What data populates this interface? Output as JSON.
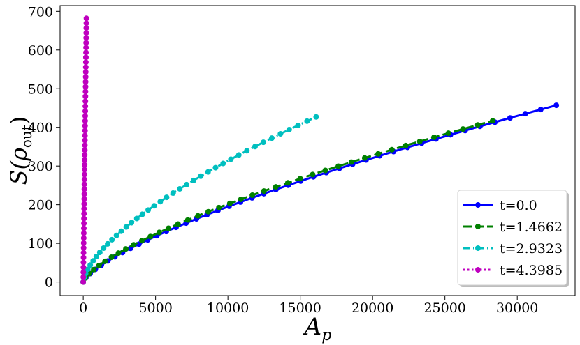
{
  "chart_data": {
    "type": "line",
    "xlabel": "A_p",
    "ylabel": "S(ρ_out)",
    "xlim": [
      -1600,
      34000
    ],
    "ylim": [
      -35,
      715
    ],
    "xticks": [
      0,
      5000,
      10000,
      15000,
      20000,
      25000,
      30000
    ],
    "yticks": [
      0,
      100,
      200,
      300,
      400,
      500,
      600,
      700
    ],
    "grid": false,
    "legend_position": "bottom-right",
    "series": [
      {
        "name": "t=0.0",
        "color": "#0000ff",
        "linestyle": "solid",
        "x_max": 32700,
        "y_max": 457,
        "n_points": 43,
        "exponent": 0.72
      },
      {
        "name": "t=1.4662",
        "color": "#008000",
        "linestyle": "dashed",
        "x_max": 28300,
        "y_max": 417,
        "n_points": 40,
        "exponent": 0.7
      },
      {
        "name": "t=2.9323",
        "color": "#00bfbf",
        "linestyle": "dashdot",
        "x_max": 16100,
        "y_max": 427,
        "n_points": 40,
        "exponent": 0.65
      },
      {
        "name": "t=4.3985",
        "color": "#bf00bf",
        "linestyle": "dotted",
        "x_max": 220,
        "y_max": 682,
        "n_points": 55,
        "exponent": 0.97
      }
    ]
  }
}
